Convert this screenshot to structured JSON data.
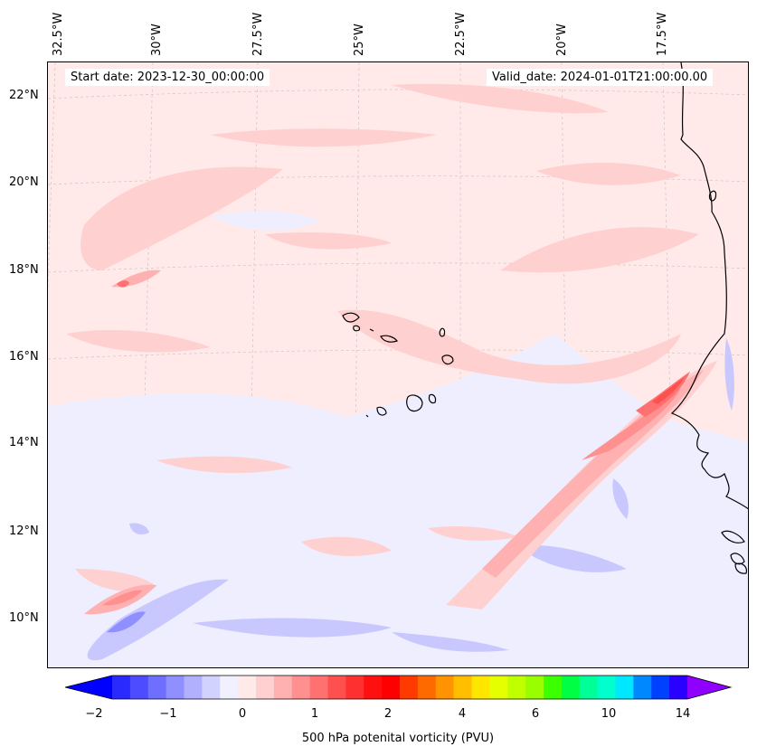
{
  "map": {
    "start_date": "Start date: 2023-12-30_00:00:00",
    "valid_date": "Valid_date: 2024-01-01T21:00:00.00",
    "lon_labels": [
      "32.5°W",
      "30°W",
      "27.5°W",
      "25°W",
      "22.5°W",
      "20°W",
      "17.5°W"
    ],
    "lat_labels": [
      "22°N",
      "20°N",
      "18°N",
      "16°N",
      "14°N",
      "12°N",
      "10°N"
    ],
    "background_color": "#ffe9e9",
    "coast_color": "#000000"
  },
  "colorbar": {
    "label": "500 hPa potenital vorticity (PVU)",
    "ticks": [
      "−2",
      "−1",
      "0",
      "1",
      "2",
      "4",
      "6",
      "10",
      "14"
    ],
    "colors": [
      "#0000ff",
      "#2a2aff",
      "#4d4dff",
      "#6e6eff",
      "#8f8fff",
      "#b0b0ff",
      "#d2d2ff",
      "#f0f0ff",
      "#ffe9e9",
      "#ffd0d0",
      "#ffb0b0",
      "#ff9090",
      "#ff7070",
      "#ff5050",
      "#ff3030",
      "#ff1010",
      "#ff0000",
      "#ff3a00",
      "#ff6a00",
      "#ff9400",
      "#ffbe00",
      "#ffe600",
      "#e6ff00",
      "#c0ff00",
      "#99ff00",
      "#3cff00",
      "#00ff44",
      "#00ff99",
      "#00ffcc",
      "#00e8ff",
      "#0088ff",
      "#0040ff",
      "#2a00ff",
      "#9000ff"
    ]
  }
}
